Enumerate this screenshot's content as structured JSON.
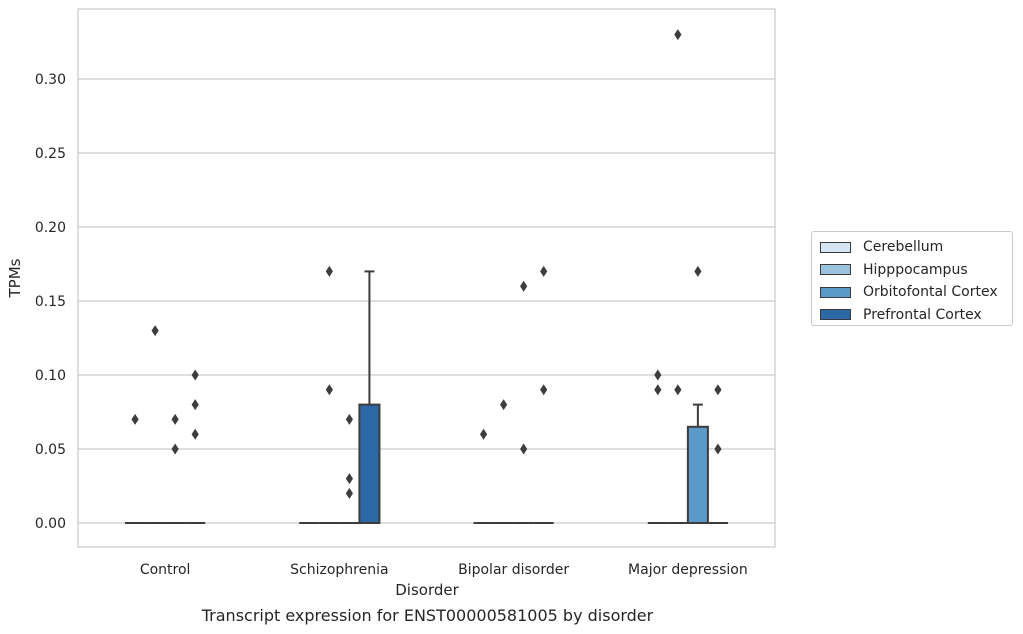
{
  "chart_data": {
    "type": "boxplot",
    "caption": "Transcript expression for ENST00000581005 by disorder",
    "xlabel": "Disorder",
    "ylabel": "TPMs",
    "ylim": [
      -0.016,
      0.347
    ],
    "yticks": [
      "0.00",
      "0.05",
      "0.10",
      "0.15",
      "0.20",
      "0.25",
      "0.30"
    ],
    "grid": true,
    "legend_position": "right",
    "categories": [
      "Control",
      "Schizophrenia",
      "Bipolar disorder",
      "Major depression"
    ],
    "series": [
      {
        "name": "Cerebellum",
        "color": "#d6e5f2",
        "boxes": [
          {
            "q1": 0,
            "median": 0,
            "q3": 0,
            "whisker_low": 0,
            "whisker_high": 0,
            "outliers": [
              0.07
            ]
          },
          {
            "q1": 0,
            "median": 0,
            "q3": 0,
            "whisker_low": 0,
            "whisker_high": 0,
            "outliers": []
          },
          {
            "q1": 0,
            "median": 0,
            "q3": 0,
            "whisker_low": 0,
            "whisker_high": 0,
            "outliers": [
              0.06
            ]
          },
          {
            "q1": 0,
            "median": 0,
            "q3": 0,
            "whisker_low": 0,
            "whisker_high": 0,
            "outliers": [
              0.1,
              0.09
            ]
          }
        ]
      },
      {
        "name": "Hipppocampus",
        "color": "#9cc3dd",
        "boxes": [
          {
            "q1": 0,
            "median": 0,
            "q3": 0,
            "whisker_low": 0,
            "whisker_high": 0,
            "outliers": [
              0.13
            ]
          },
          {
            "q1": 0,
            "median": 0,
            "q3": 0,
            "whisker_low": 0,
            "whisker_high": 0,
            "outliers": [
              0.17,
              0.09
            ]
          },
          {
            "q1": 0,
            "median": 0,
            "q3": 0,
            "whisker_low": 0,
            "whisker_high": 0,
            "outliers": [
              0.08
            ]
          },
          {
            "q1": 0,
            "median": 0,
            "q3": 0,
            "whisker_low": 0,
            "whisker_high": 0,
            "outliers": [
              0.33,
              0.09
            ]
          }
        ]
      },
      {
        "name": "Orbitofontal Cortex",
        "color": "#5b9ac8",
        "boxes": [
          {
            "q1": 0,
            "median": 0,
            "q3": 0,
            "whisker_low": 0,
            "whisker_high": 0,
            "outliers": [
              0.07,
              0.05
            ]
          },
          {
            "q1": 0,
            "median": 0,
            "q3": 0,
            "whisker_low": 0,
            "whisker_high": 0,
            "outliers": [
              0.07,
              0.03,
              0.02
            ]
          },
          {
            "q1": 0,
            "median": 0,
            "q3": 0,
            "whisker_low": 0,
            "whisker_high": 0,
            "outliers": [
              0.16,
              0.05
            ]
          },
          {
            "q1": 0,
            "median": 0,
            "q3": 0.065,
            "whisker_low": 0,
            "whisker_high": 0.08,
            "outliers": [
              0.17
            ]
          }
        ]
      },
      {
        "name": "Prefrontal Cortex",
        "color": "#2c67a6",
        "boxes": [
          {
            "q1": 0,
            "median": 0,
            "q3": 0,
            "whisker_low": 0,
            "whisker_high": 0,
            "outliers": [
              0.1,
              0.08,
              0.06
            ]
          },
          {
            "q1": 0,
            "median": 0,
            "q3": 0.08,
            "whisker_low": 0,
            "whisker_high": 0.17,
            "outliers": []
          },
          {
            "q1": 0,
            "median": 0,
            "q3": 0,
            "whisker_low": 0,
            "whisker_high": 0,
            "outliers": [
              0.17,
              0.09
            ]
          },
          {
            "q1": 0,
            "median": 0,
            "q3": 0,
            "whisker_low": 0,
            "whisker_high": 0,
            "outliers": [
              0.09,
              0.05
            ]
          }
        ]
      }
    ]
  }
}
